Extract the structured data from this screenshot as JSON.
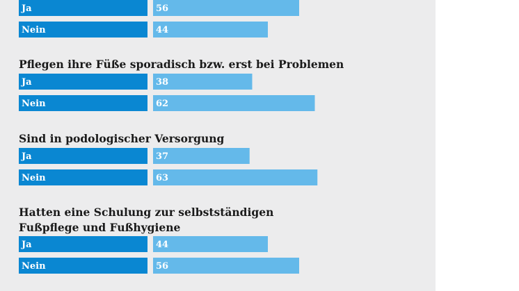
{
  "chart_data": {
    "type": "bar",
    "orientation": "horizontal",
    "unit": "percent",
    "xlim": [
      0,
      100
    ],
    "colors": {
      "background": "#ececed",
      "label_bar": "#0a87d2",
      "value_bar": "#64b9ea",
      "title_text": "#1a1a1a",
      "bar_text": "#ffffff"
    },
    "groups": [
      {
        "title_lines": [],
        "rows": [
          {
            "category": "Ja",
            "value": 56
          },
          {
            "category": "Nein",
            "value": 44
          }
        ]
      },
      {
        "title_lines": [
          "Pflegen ihre Füße sporadisch bzw. erst bei Problemen"
        ],
        "rows": [
          {
            "category": "Ja",
            "value": 38
          },
          {
            "category": "Nein",
            "value": 62
          }
        ]
      },
      {
        "title_lines": [
          "Sind in podologischer Versorgung"
        ],
        "rows": [
          {
            "category": "Ja",
            "value": 37
          },
          {
            "category": "Nein",
            "value": 63
          }
        ]
      },
      {
        "title_lines": [
          "Hatten eine Schulung zur selbstständigen",
          "Fußpflege und Fußhygiene"
        ],
        "rows": [
          {
            "category": "Ja",
            "value": 44
          },
          {
            "category": "Nein",
            "value": 56
          }
        ]
      }
    ]
  }
}
